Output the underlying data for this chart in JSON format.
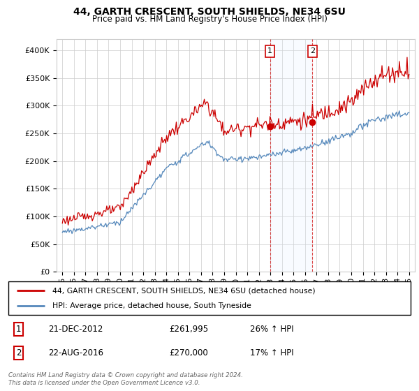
{
  "title": "44, GARTH CRESCENT, SOUTH SHIELDS, NE34 6SU",
  "subtitle": "Price paid vs. HM Land Registry's House Price Index (HPI)",
  "legend_line1": "44, GARTH CRESCENT, SOUTH SHIELDS, NE34 6SU (detached house)",
  "legend_line2": "HPI: Average price, detached house, South Tyneside",
  "annotation1_date": "21-DEC-2012",
  "annotation1_price": "£261,995",
  "annotation1_hpi": "26% ↑ HPI",
  "annotation2_date": "22-AUG-2016",
  "annotation2_price": "£270,000",
  "annotation2_hpi": "17% ↑ HPI",
  "footer": "Contains HM Land Registry data © Crown copyright and database right 2024.\nThis data is licensed under the Open Government Licence v3.0.",
  "red_color": "#cc0000",
  "blue_color": "#5588bb",
  "shade_color": "#ddeeff",
  "ylim": [
    0,
    420000
  ],
  "yticks": [
    0,
    50000,
    100000,
    150000,
    200000,
    250000,
    300000,
    350000,
    400000
  ],
  "sale1_x": 2012.97,
  "sale1_y": 261995,
  "sale2_x": 2016.64,
  "sale2_y": 270000,
  "xmin": 1994.5,
  "xmax": 2025.5
}
